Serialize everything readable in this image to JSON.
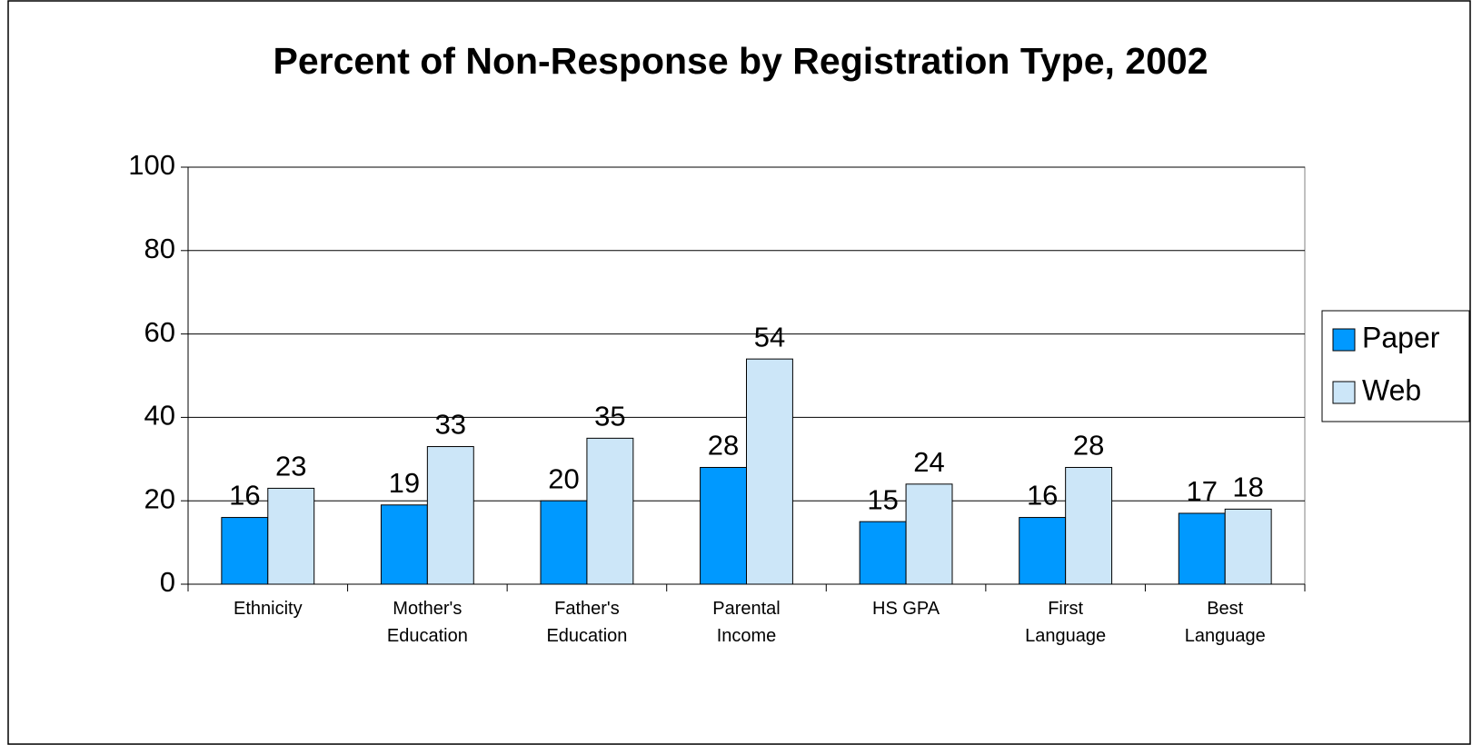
{
  "chart_data": {
    "type": "bar",
    "title": "Percent of Non-Response by Registration Type, 2002",
    "categories": [
      "Ethnicity",
      "Mother's Education",
      "Father's Education",
      "Parental Income",
      "HS GPA",
      "First Language",
      "Best Language"
    ],
    "series": [
      {
        "name": "Paper",
        "color": "#0099ff",
        "values": [
          16,
          19,
          20,
          28,
          15,
          16,
          17
        ]
      },
      {
        "name": "Web",
        "color": "#cce6f8",
        "values": [
          23,
          33,
          35,
          54,
          24,
          28,
          18
        ]
      }
    ],
    "ylim": [
      0,
      100
    ],
    "yticks": [
      0,
      20,
      40,
      60,
      80,
      100
    ],
    "grid": true,
    "legend": "right"
  }
}
